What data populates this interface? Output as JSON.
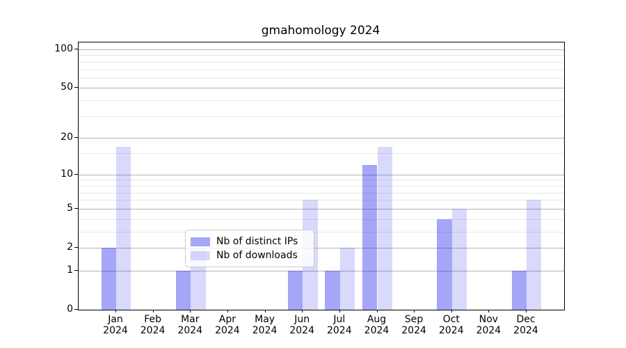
{
  "title": "gmahomology 2024",
  "chart_data": {
    "type": "bar",
    "title": "gmahomology 2024",
    "x_categories": [
      "Jan",
      "Feb",
      "Mar",
      "Apr",
      "May",
      "Jun",
      "Jul",
      "Aug",
      "Sep",
      "Oct",
      "Nov",
      "Dec"
    ],
    "x_year": "2024",
    "series": [
      {
        "name": "Nb of distinct IPs",
        "color": "rgba(0,0,238,0.35)",
        "values": [
          2,
          0,
          1,
          0,
          0,
          1,
          1,
          12,
          0,
          4,
          0,
          1
        ]
      },
      {
        "name": "Nb of downloads",
        "color": "rgba(0,0,238,0.15)",
        "values": [
          17,
          0,
          2,
          0,
          0,
          6,
          2,
          17,
          0,
          5,
          0,
          6
        ]
      }
    ],
    "y_scale": "log1p",
    "y_ticks": [
      0,
      1,
      2,
      5,
      10,
      20,
      50,
      100
    ],
    "y_minor_ticks": [
      3,
      4,
      6,
      7,
      8,
      9,
      15,
      30,
      40,
      60,
      70,
      80,
      90
    ],
    "ylim": [
      0,
      113
    ],
    "grid": true,
    "legend_position": "lower center"
  },
  "colors": {
    "major_grid": "#b4b4b4",
    "minor_grid": "#e8e8e8",
    "spine": "#000000",
    "legend_border": "#cccccc",
    "legend_bg": "rgba(255,255,255,0.8)"
  }
}
